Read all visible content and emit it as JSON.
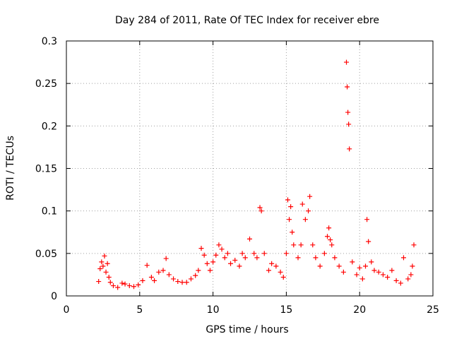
{
  "chart_data": {
    "type": "scatter",
    "title": "Day 284 of 2011, Rate Of TEC Index for receiver ebre",
    "xlabel": "GPS time / hours",
    "ylabel": "ROTI / TECUs",
    "xlim": [
      0,
      25
    ],
    "ylim": [
      0,
      0.3
    ],
    "xticks": [
      0,
      5,
      10,
      15,
      20,
      25
    ],
    "xtick_labels": [
      "0",
      "5",
      "10",
      "15",
      "20",
      "25"
    ],
    "yticks": [
      0,
      0.05,
      0.1,
      0.15,
      0.2,
      0.25,
      0.3
    ],
    "ytick_labels": [
      "0",
      "0.05",
      "0.1",
      "0.15",
      "0.2",
      "0.25",
      "0.3"
    ],
    "grid": true,
    "marker": "+",
    "color": "#ff0000",
    "series": [
      {
        "name": "ROTI",
        "x": [
          2.2,
          2.3,
          2.4,
          2.5,
          2.6,
          2.7,
          2.8,
          2.9,
          3.0,
          3.2,
          3.5,
          3.8,
          4.0,
          4.3,
          4.6,
          4.9,
          5.2,
          5.5,
          5.8,
          6.0,
          6.3,
          6.6,
          6.8,
          7.0,
          7.3,
          7.6,
          7.9,
          8.2,
          8.5,
          8.8,
          9.0,
          9.2,
          9.4,
          9.6,
          9.8,
          10.0,
          10.2,
          10.4,
          10.6,
          10.8,
          11.0,
          11.2,
          11.5,
          11.8,
          12.0,
          12.2,
          12.5,
          12.8,
          13.0,
          13.2,
          13.3,
          13.5,
          13.8,
          14.0,
          14.3,
          14.6,
          14.8,
          15.0,
          15.1,
          15.2,
          15.3,
          15.4,
          15.5,
          15.8,
          16.0,
          16.1,
          16.3,
          16.5,
          16.6,
          16.8,
          17.0,
          17.3,
          17.6,
          17.8,
          17.9,
          18.0,
          18.1,
          18.3,
          18.6,
          18.9,
          19.1,
          19.15,
          19.2,
          19.25,
          19.3,
          19.5,
          19.8,
          20.0,
          20.2,
          20.4,
          20.5,
          20.6,
          20.8,
          21.0,
          21.3,
          21.6,
          21.9,
          22.2,
          22.5,
          22.8,
          23.0,
          23.3,
          23.5,
          23.6,
          23.7
        ],
        "y": [
          0.017,
          0.032,
          0.04,
          0.035,
          0.047,
          0.028,
          0.038,
          0.022,
          0.016,
          0.012,
          0.01,
          0.015,
          0.014,
          0.012,
          0.011,
          0.013,
          0.018,
          0.036,
          0.022,
          0.018,
          0.028,
          0.03,
          0.044,
          0.025,
          0.02,
          0.017,
          0.016,
          0.016,
          0.02,
          0.024,
          0.03,
          0.056,
          0.048,
          0.038,
          0.03,
          0.04,
          0.048,
          0.06,
          0.055,
          0.045,
          0.05,
          0.038,
          0.042,
          0.035,
          0.05,
          0.045,
          0.067,
          0.05,
          0.045,
          0.104,
          0.1,
          0.05,
          0.03,
          0.038,
          0.035,
          0.028,
          0.022,
          0.05,
          0.113,
          0.09,
          0.105,
          0.075,
          0.06,
          0.045,
          0.06,
          0.108,
          0.09,
          0.1,
          0.117,
          0.06,
          0.045,
          0.035,
          0.05,
          0.07,
          0.08,
          0.066,
          0.06,
          0.045,
          0.035,
          0.028,
          0.275,
          0.246,
          0.216,
          0.202,
          0.173,
          0.04,
          0.025,
          0.033,
          0.02,
          0.035,
          0.09,
          0.064,
          0.04,
          0.03,
          0.028,
          0.025,
          0.022,
          0.03,
          0.018,
          0.015,
          0.045,
          0.02,
          0.025,
          0.035,
          0.06
        ]
      }
    ]
  }
}
